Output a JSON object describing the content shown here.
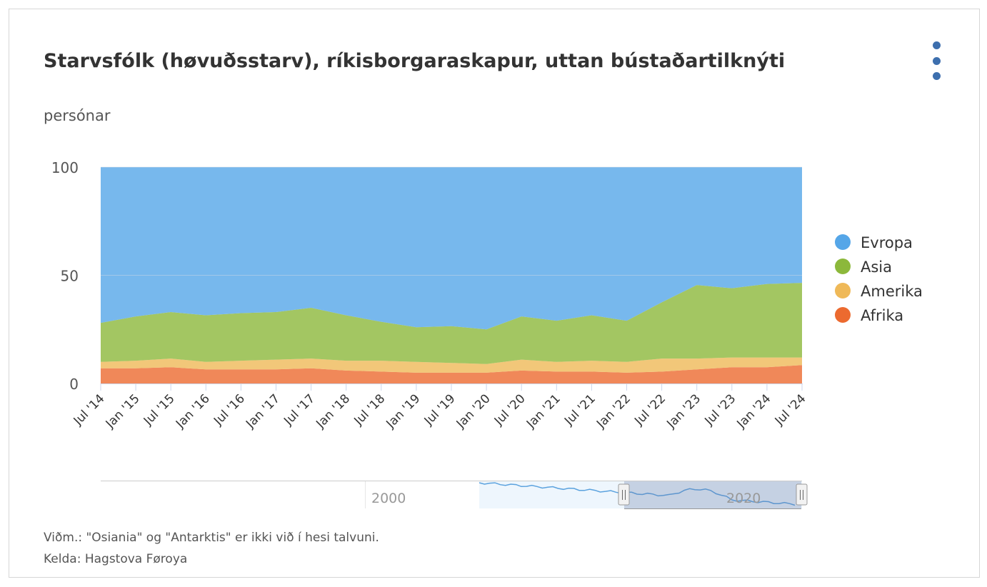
{
  "header": {
    "title": "Starvsfólk (høvuðsstarv), ríkisborgaraskapur, uttan bústaðartilknýti",
    "subtitle": "persónar"
  },
  "menu": {
    "icon": "more-vertical-icon"
  },
  "footer": {
    "note": "Viðm.: \"Osiania\" og \"Antarktis\" er ikki við í hesi talvuni.",
    "source": "Kelda: Hagstova Føroya"
  },
  "navigator": {
    "labels": [
      "2000",
      "2020"
    ],
    "handle_icon": "drag-handle-icon"
  },
  "chart_data": {
    "type": "area",
    "stacking": "percent",
    "title": "Starvsfólk (høvuðsstarv), ríkisborgaraskapur, uttan bústaðartilknýti",
    "ylabel": "persónar",
    "xlabel": "",
    "ylim": [
      0,
      100
    ],
    "yticks": [
      0,
      50,
      100
    ],
    "xticks": [
      "Jul '14",
      "Jan '15",
      "Jul '15",
      "Jan '16",
      "Jul '16",
      "Jan '17",
      "Jul '17",
      "Jan '18",
      "Jul '18",
      "Jan '19",
      "Jul '19",
      "Jan '20",
      "Jul '20",
      "Jan '21",
      "Jul '21",
      "Jan '22",
      "Jul '22",
      "Jan '23",
      "Jul '23",
      "Jan '24",
      "Jul '24"
    ],
    "legend_position": "right",
    "x": [
      "Jul '14",
      "Jan '15",
      "Jul '15",
      "Jan '16",
      "Jul '16",
      "Jan '17",
      "Jul '17",
      "Jan '18",
      "Jul '18",
      "Jan '19",
      "Jul '19",
      "Jan '20",
      "Jul '20",
      "Jan '21",
      "Jul '21",
      "Jan '22",
      "Jul '22",
      "Jan '23",
      "Jul '23",
      "Jan '24",
      "Jul '24"
    ],
    "series": [
      {
        "name": "Afrika",
        "color": "#ec6a2f",
        "values": [
          7,
          7,
          7.5,
          6.5,
          6.5,
          6.5,
          7,
          6,
          5.5,
          5,
          5,
          5,
          6,
          5.5,
          5.5,
          5,
          5.5,
          6.5,
          7.5,
          7.5,
          8.5
        ]
      },
      {
        "name": "Amerika",
        "color": "#efb958",
        "values": [
          3,
          3.5,
          4,
          3.5,
          4,
          4.5,
          4.5,
          4.5,
          5,
          5,
          4.5,
          4,
          5,
          4.5,
          5,
          5,
          6,
          5,
          4.5,
          4.5,
          3.5
        ]
      },
      {
        "name": "Asia",
        "color": "#8cb83b",
        "values": [
          18,
          20.5,
          21.5,
          21.5,
          22,
          22,
          23.5,
          21,
          18,
          16,
          17,
          16,
          20,
          19,
          21,
          19,
          26,
          34,
          32,
          34,
          34.5
        ]
      },
      {
        "name": "Evropa",
        "color": "#55a6e8",
        "values": [
          72,
          69,
          67,
          68.5,
          67.5,
          67,
          65,
          68.5,
          71.5,
          74,
          73.5,
          75,
          69,
          71,
          68.5,
          71,
          62.5,
          54.5,
          56,
          54,
          53.5
        ]
      }
    ]
  }
}
